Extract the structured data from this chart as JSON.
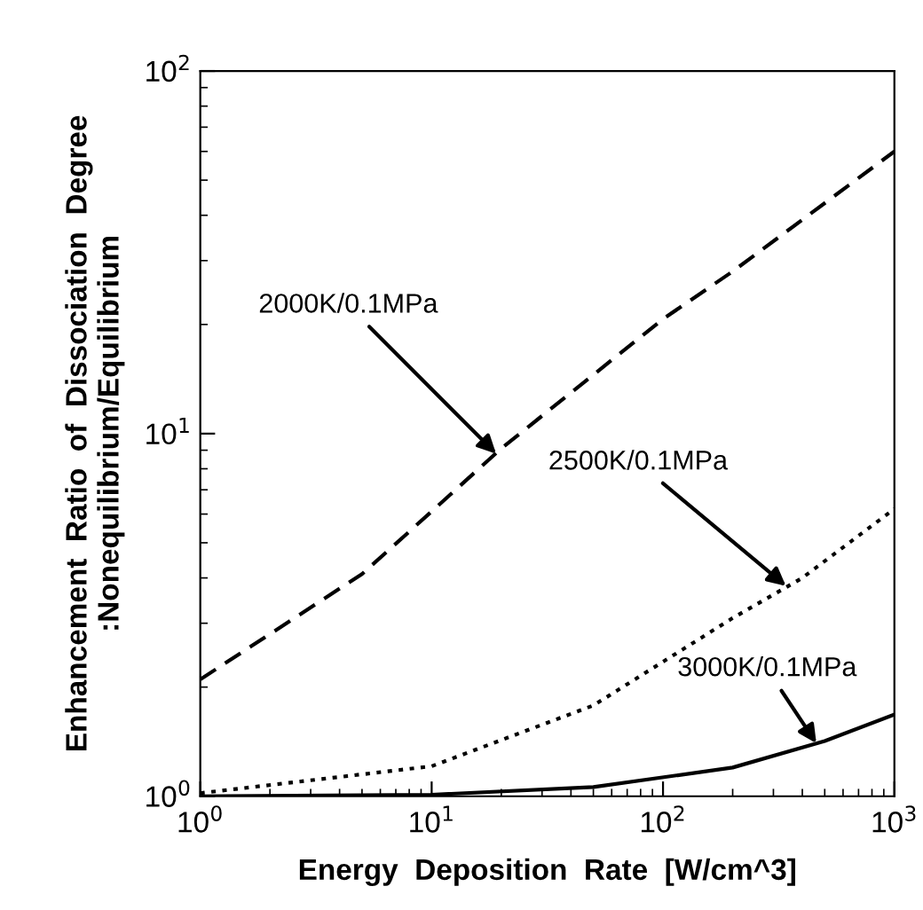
{
  "chart_data": {
    "type": "line",
    "xlabel": "Energy  Deposition  Rate  [W/cm^3]",
    "ylabel": "Enhancement  Ratio  of  Dissociation  Degree\n:Nonequilibrium/Equilibrium",
    "log": "xy",
    "xlim": [
      1,
      1000
    ],
    "ylim": [
      1,
      100
    ],
    "xticks": [
      {
        "value": 1,
        "label": "10$^{0}$"
      },
      {
        "value": 10,
        "label": "10$^{1}$"
      },
      {
        "value": 100,
        "label": "10$^{2}$"
      },
      {
        "value": 1000,
        "label": "10$^{3}$"
      }
    ],
    "yticks": [
      {
        "value": 1,
        "label": "10$^{0}$"
      },
      {
        "value": 10,
        "label": "10$^{1}$"
      },
      {
        "value": 100,
        "label": "10$^{2}$"
      }
    ],
    "grid": false,
    "legend": false,
    "marker": "none",
    "series": [
      {
        "color": "#000000",
        "line_style": "dashed",
        "x": [
          1,
          5,
          10,
          20,
          100,
          200,
          1000
        ],
        "values": [
          2.1,
          4.1,
          6.1,
          9.1,
          20.7,
          28,
          60
        ]
      },
      {
        "color": "#000000",
        "line_style": "dotted",
        "x": [
          1,
          10,
          50,
          200,
          400,
          1000
        ],
        "values": [
          1.02,
          1.21,
          1.78,
          3.1,
          4.0,
          6.2
        ]
      },
      {
        "color": "#000000",
        "line_style": "solid",
        "x": [
          1,
          10,
          50,
          200,
          500,
          1000
        ],
        "values": [
          1.0,
          1.01,
          1.06,
          1.2,
          1.42,
          1.68
        ]
      }
    ],
    "annotations": [
      {
        "text": "2000K/0.1MPa",
        "x": 19,
        "y": 8.8
      },
      {
        "text": "2500K/0.1MPa",
        "x": 340,
        "y": 3.8
      },
      {
        "text": "3000K/0.1MPa",
        "x": 460,
        "y": 1.4
      }
    ]
  }
}
